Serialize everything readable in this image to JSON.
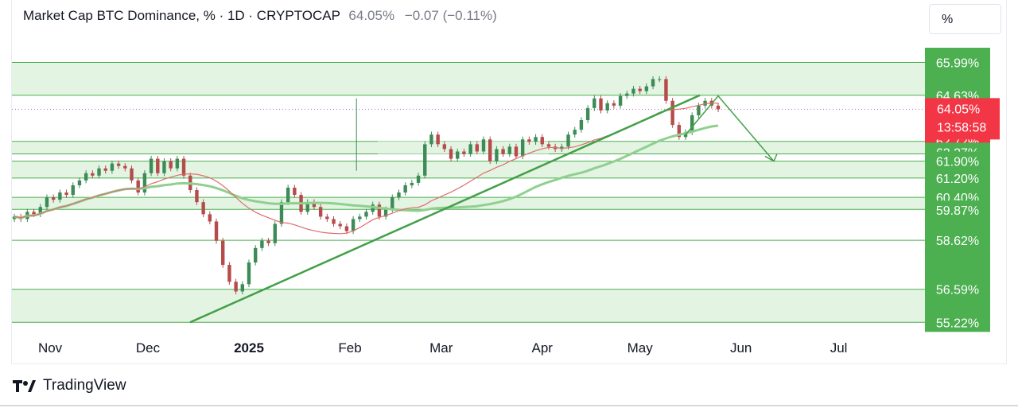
{
  "header": {
    "title": "Market Cap BTC Dominance, % · 1D · CRYPTOCAP",
    "last_value": "64.05%",
    "change": "−0.07 (−0.11%)"
  },
  "scale_button": "%",
  "footer": {
    "brand": "TradingView"
  },
  "colors": {
    "zone_fill": "#e3f4e3",
    "zone_border": "#4caf50",
    "trendline": "#43a047",
    "label_green": "#4caf50",
    "label_red": "#f23645",
    "candle_up": "#3d8b57",
    "candle_down": "#b54b4b",
    "ma_red": "#e06c6c",
    "ma_green": "#8fd08f"
  },
  "chart_data": {
    "type": "candlestick",
    "x_axis_labels": [
      "Nov",
      "Dec",
      "2025",
      "Feb",
      "Mar",
      "Apr",
      "May",
      "Jun",
      "Jul"
    ],
    "y_range": [
      54.9,
      66.6
    ],
    "price_labels": [
      {
        "text": "65.99%",
        "value": 65.99,
        "kind": "level"
      },
      {
        "text": "64.63%",
        "value": 64.63,
        "kind": "level"
      },
      {
        "text": "64.05%",
        "value": 64.05,
        "kind": "current"
      },
      {
        "text": "13:58:58",
        "value": 63.6,
        "kind": "countdown"
      },
      {
        "text": "62.72%",
        "value": 62.72,
        "kind": "level-red"
      },
      {
        "text": "62.27%",
        "value": 62.27,
        "kind": "level"
      },
      {
        "text": "61.90%",
        "value": 61.9,
        "kind": "level"
      },
      {
        "text": "61.20%",
        "value": 61.2,
        "kind": "level"
      },
      {
        "text": "60.40%",
        "value": 60.4,
        "kind": "level"
      },
      {
        "text": "59.87%",
        "value": 59.87,
        "kind": "level"
      },
      {
        "text": "58.62%",
        "value": 58.62,
        "kind": "level"
      },
      {
        "text": "56.59%",
        "value": 56.59,
        "kind": "level"
      },
      {
        "text": "55.22%",
        "value": 55.22,
        "kind": "level"
      }
    ],
    "zones": [
      {
        "from": 64.63,
        "to": 65.99
      },
      {
        "from": 62.2,
        "to": 62.72
      },
      {
        "from": 61.2,
        "to": 61.9
      },
      {
        "from": 59.9,
        "to": 60.4
      },
      {
        "from": 58.62,
        "to": 58.62
      },
      {
        "from": 55.22,
        "to": 56.59
      }
    ],
    "close_series": [
      59.6,
      59.5,
      59.8,
      59.7,
      60.0,
      60.4,
      60.3,
      60.6,
      60.5,
      60.9,
      61.1,
      61.4,
      61.3,
      61.6,
      61.5,
      61.8,
      61.7,
      61.6,
      61.1,
      60.6,
      61.4,
      62.0,
      61.4,
      61.9,
      61.6,
      62.0,
      61.3,
      60.7,
      60.2,
      59.7,
      59.4,
      58.6,
      57.6,
      56.9,
      56.5,
      56.8,
      57.7,
      58.3,
      58.6,
      58.5,
      59.3,
      60.2,
      60.8,
      60.5,
      59.8,
      60.2,
      60.0,
      59.6,
      59.5,
      59.3,
      59.2,
      59.0,
      59.5,
      59.6,
      59.8,
      60.1,
      59.6,
      59.9,
      60.4,
      60.6,
      60.9,
      61.0,
      61.3,
      62.6,
      63.0,
      62.6,
      62.4,
      62.0,
      62.3,
      62.2,
      62.6,
      62.3,
      62.8,
      61.9,
      62.4,
      62.2,
      62.5,
      62.1,
      62.8,
      62.7,
      62.9,
      62.6,
      62.5,
      62.4,
      62.5,
      63.0,
      63.2,
      63.6,
      64.1,
      64.5,
      64.0,
      64.3,
      64.2,
      64.6,
      64.7,
      64.9,
      64.8,
      65.0,
      65.3,
      65.3,
      64.4,
      63.4,
      62.9,
      63.1,
      63.8,
      64.2,
      64.4,
      64.2,
      64.05
    ],
    "candles_range": {
      "start": "2024-10-21",
      "end": "2025-05-25"
    }
  }
}
